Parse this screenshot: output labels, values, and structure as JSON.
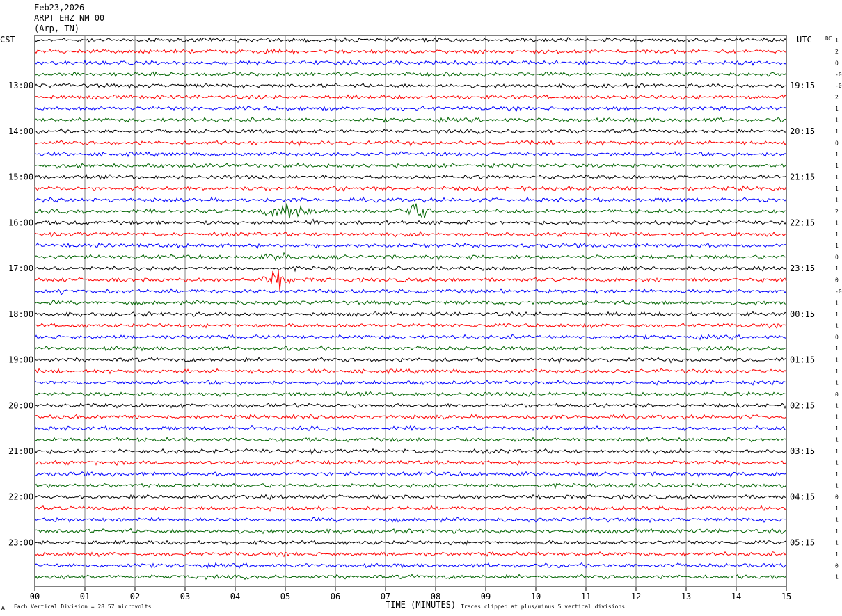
{
  "header": {
    "date": "Feb23,2026",
    "station": "ARPT EHZ NM 00",
    "location": "(Arp, TN)"
  },
  "chart_data": {
    "type": "line",
    "title": "",
    "xlabel": "TIME (MINUTES)",
    "ylabel": "",
    "xlim": [
      0,
      15
    ],
    "x_ticks": [
      "00",
      "01",
      "02",
      "03",
      "04",
      "05",
      "06",
      "07",
      "08",
      "09",
      "10",
      "11",
      "12",
      "13",
      "14",
      "15"
    ],
    "left_axis_label": "CST",
    "right_axis_label": "UTC",
    "dc_label": "DC",
    "left_time_labels": [
      "13:00",
      "14:00",
      "15:00",
      "16:00",
      "17:00",
      "18:00",
      "19:00",
      "20:00",
      "21:00",
      "22:00",
      "23:00"
    ],
    "right_time_labels": [
      "19:15",
      "20:15",
      "21:15",
      "22:15",
      "23:15",
      "00:15",
      "01:15",
      "02:15",
      "03:15",
      "04:15",
      "05:15"
    ],
    "trace_colors": [
      "#000000",
      "#ff0000",
      "#0000ff",
      "#006400"
    ],
    "trace_count": 48,
    "dc_offsets": [
      "1",
      "2",
      "0",
      "-0",
      "-0",
      "2",
      "1",
      "1",
      "1",
      "0",
      "1",
      "1",
      "1",
      "1",
      "1",
      "2",
      "1",
      "1",
      "1",
      "0",
      "1",
      "0",
      "-0",
      "1",
      "1",
      "1",
      "0",
      "1",
      "1",
      "1",
      "1",
      "0",
      "1",
      "1",
      "1",
      "1",
      "1",
      "1",
      "1",
      "1",
      "0",
      "1",
      "1",
      "1",
      "1",
      "1",
      "0",
      "1"
    ],
    "events": [
      {
        "trace": 15,
        "start_min": 4.0,
        "end_min": 6.3,
        "peak_min": 5.2,
        "amplitude": 11
      },
      {
        "trace": 15,
        "start_min": 7.0,
        "end_min": 8.3,
        "peak_min": 7.6,
        "amplitude": 14
      },
      {
        "trace": 16,
        "start_min": 5.0,
        "end_min": 6.6,
        "peak_min": 5.5,
        "amplitude": 5
      },
      {
        "trace": 19,
        "start_min": 3.8,
        "end_min": 5.5,
        "peak_min": 5.0,
        "amplitude": 5
      },
      {
        "trace": 21,
        "start_min": 4.2,
        "end_min": 5.5,
        "peak_min": 4.9,
        "amplitude": 13
      },
      {
        "trace": 22,
        "start_min": 0.4,
        "end_min": 0.8,
        "peak_min": 0.6,
        "amplitude": 6
      },
      {
        "trace": 26,
        "start_min": 0.4,
        "end_min": 1.0,
        "peak_min": 0.7,
        "amplitude": 3
      },
      {
        "trace": 7,
        "start_min": 13.4,
        "end_min": 13.8,
        "peak_min": 13.6,
        "amplitude": 4
      },
      {
        "trace": 13,
        "start_min": 5.9,
        "end_min": 6.4,
        "peak_min": 6.1,
        "amplitude": 5
      }
    ],
    "footer_left": "Each Vertical Division =   28.57 microvolts",
    "footer_right": "Traces clipped at plus/minus 5 vertical divisions",
    "corner_mark": "A"
  }
}
